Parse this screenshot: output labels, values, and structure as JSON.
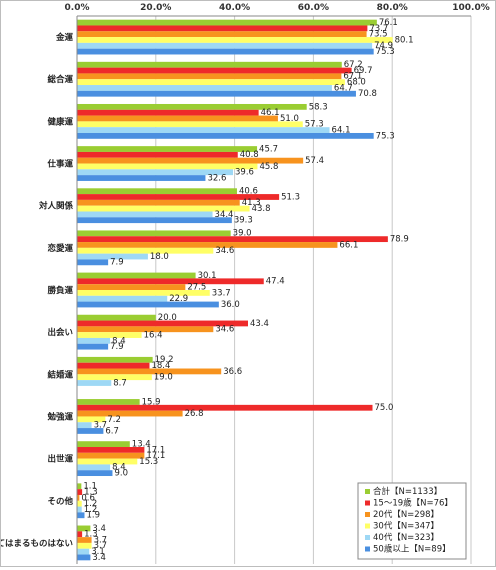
{
  "chart_data": {
    "type": "bar",
    "orientation": "horizontal",
    "xlim": [
      0,
      100
    ],
    "x_ticks": [
      "0.0%",
      "20.0%",
      "40.0%",
      "60.0%",
      "80.0%",
      "100.0%"
    ],
    "grid": true,
    "legend_position": "bottom-right",
    "categories": [
      "金運",
      "総合運",
      "健康運",
      "仕事運",
      "対人関係",
      "恋愛運",
      "勝負運",
      "出会い",
      "結婚運",
      "勉強運",
      "出世運",
      "その他",
      "あてはまるものはない"
    ],
    "series": [
      {
        "name": "合計【N=1133】",
        "color": "#9acd32",
        "values": [
          76.1,
          67.2,
          58.3,
          45.7,
          40.6,
          39.0,
          30.1,
          20.0,
          19.2,
          15.9,
          13.4,
          1.1,
          3.4
        ]
      },
      {
        "name": "15～19歳【N=76】",
        "color": "#ee2a2a",
        "values": [
          73.7,
          69.7,
          46.1,
          40.8,
          51.3,
          78.9,
          47.4,
          43.4,
          18.4,
          75.0,
          17.1,
          1.3,
          1.3
        ]
      },
      {
        "name": "20代【N=298】",
        "color": "#f7931e",
        "values": [
          73.5,
          67.1,
          51.0,
          57.4,
          41.3,
          66.1,
          27.5,
          34.6,
          36.6,
          26.8,
          17.1,
          0.6,
          3.7
        ]
      },
      {
        "name": "30代【N=347】",
        "color": "#ffff66",
        "values": [
          80.1,
          68.0,
          57.3,
          45.8,
          43.8,
          34.6,
          33.7,
          16.4,
          19.0,
          7.2,
          15.3,
          1.2,
          3.7
        ]
      },
      {
        "name": "40代【N=323】",
        "color": "#9ed8f5",
        "values": [
          74.9,
          64.7,
          64.1,
          39.6,
          34.4,
          18.0,
          22.9,
          8.4,
          8.7,
          3.7,
          8.4,
          1.2,
          3.1
        ]
      },
      {
        "name": "50歳以上【N=89】",
        "color": "#4a8fe0",
        "values": [
          75.3,
          70.8,
          75.3,
          32.6,
          39.3,
          7.9,
          36.0,
          7.9,
          null,
          6.7,
          9.0,
          1.9,
          3.4
        ]
      }
    ]
  }
}
